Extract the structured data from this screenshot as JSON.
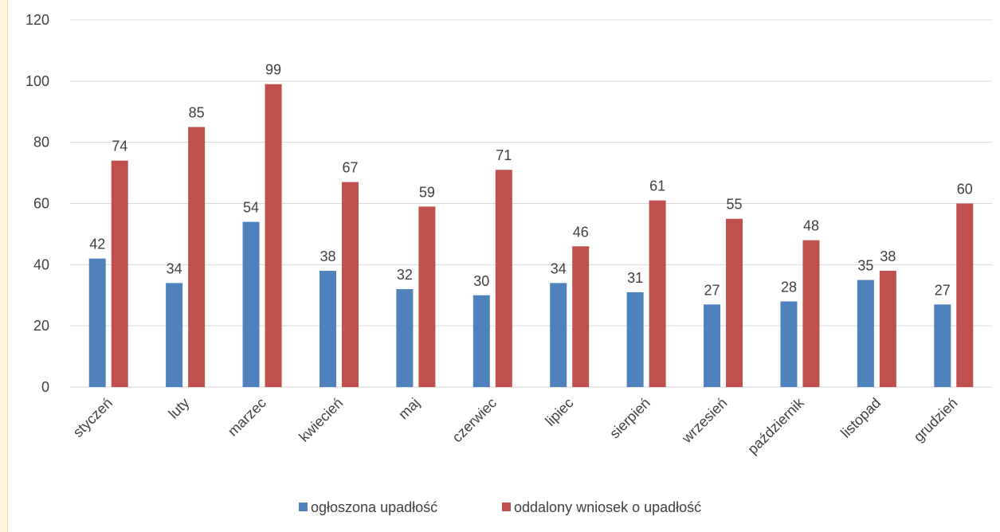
{
  "chart_data": {
    "type": "bar",
    "categories": [
      "styczeń",
      "luty",
      "marzec",
      "kwiecień",
      "maj",
      "czerwiec",
      "lipiec",
      "sierpień",
      "wrzesień",
      "październik",
      "listopad",
      "grudzień"
    ],
    "series": [
      {
        "name": "ogłoszona upadłość",
        "color": "#4f81bd",
        "values": [
          42,
          34,
          54,
          38,
          32,
          30,
          34,
          31,
          27,
          28,
          35,
          27
        ]
      },
      {
        "name": "oddalony wniosek o upadłość",
        "color": "#c0504d",
        "values": [
          74,
          85,
          99,
          67,
          59,
          71,
          46,
          61,
          55,
          48,
          38,
          60
        ]
      }
    ],
    "ylim": [
      0,
      120
    ],
    "yticks": [
      0,
      20,
      40,
      60,
      80,
      100,
      120
    ],
    "title": "",
    "xlabel": "",
    "ylabel": "",
    "grid": true,
    "legend_position": "bottom",
    "data_labels": true
  }
}
